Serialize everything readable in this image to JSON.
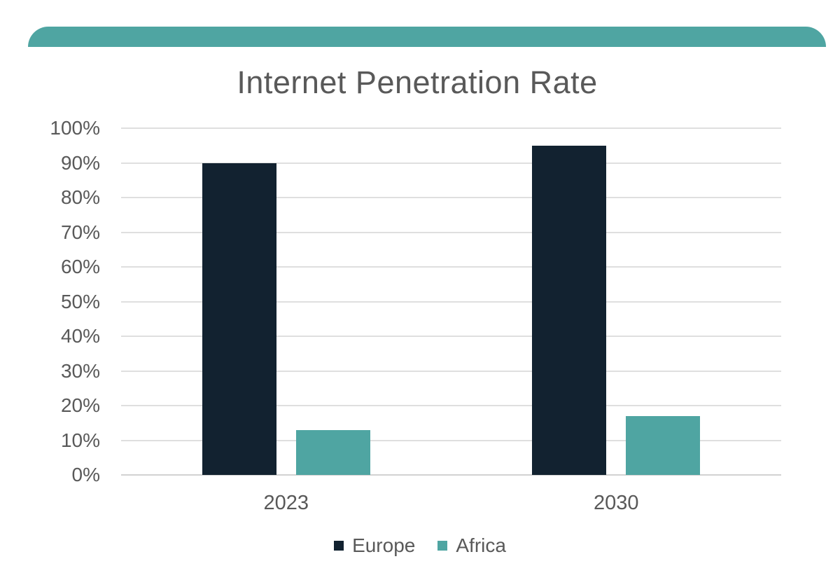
{
  "page": {
    "background": "#FFFFFF"
  },
  "banner": {
    "color": "#4FA5A2"
  },
  "chart_data": {
    "type": "bar",
    "title": "Internet Penetration Rate",
    "categories": [
      "2023",
      "2030"
    ],
    "series": [
      {
        "name": "Europe",
        "values": [
          90,
          95
        ],
        "color": "#122230"
      },
      {
        "name": "Africa",
        "values": [
          13,
          17
        ],
        "color": "#4FA5A2"
      }
    ],
    "xlabel": "",
    "ylabel": "",
    "ylim": [
      0,
      100
    ],
    "ytick_step": 10,
    "ytick_labels": [
      "0%",
      "10%",
      "20%",
      "30%",
      "40%",
      "50%",
      "60%",
      "70%",
      "80%",
      "90%",
      "100%"
    ],
    "ytick_suffix": "%",
    "grid": true,
    "legend_position": "bottom",
    "text_color": "#595959",
    "gridline_color": "#DFDFDF",
    "axis_line_color": "#D2D2D2"
  }
}
